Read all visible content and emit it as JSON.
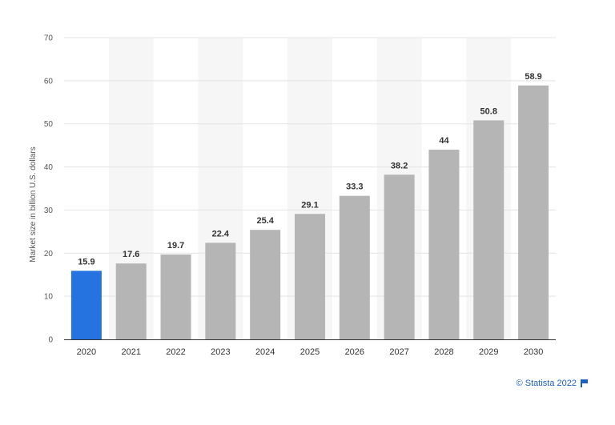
{
  "chart_data": {
    "type": "bar",
    "categories": [
      "2020",
      "2021",
      "2022",
      "2023",
      "2024",
      "2025",
      "2026",
      "2027",
      "2028",
      "2029",
      "2030"
    ],
    "values": [
      15.9,
      17.6,
      19.7,
      22.4,
      25.4,
      29.1,
      33.3,
      38.2,
      44,
      50.8,
      58.9
    ],
    "value_labels": [
      "15.9",
      "17.6",
      "19.7",
      "22.4",
      "25.4",
      "29.1",
      "33.3",
      "38.2",
      "44",
      "50.8",
      "58.9"
    ],
    "ylabel": "Market size in billion U.S. dollars",
    "ylim": [
      0,
      70
    ],
    "yticks": [
      0,
      10,
      20,
      30,
      40,
      50,
      60,
      70
    ],
    "ytick_labels": [
      "0",
      "10",
      "20",
      "30",
      "40",
      "50",
      "60",
      "70"
    ],
    "grid": true,
    "highlight_index": 0,
    "colors": {
      "highlight": "#2473e0",
      "bar": "#b5b5b5",
      "band": "#f6f6f6",
      "grid": "#e3e3e3",
      "axis": "#333333"
    }
  },
  "credit": {
    "text": "© Statista 2022",
    "icon": "flag-icon"
  }
}
